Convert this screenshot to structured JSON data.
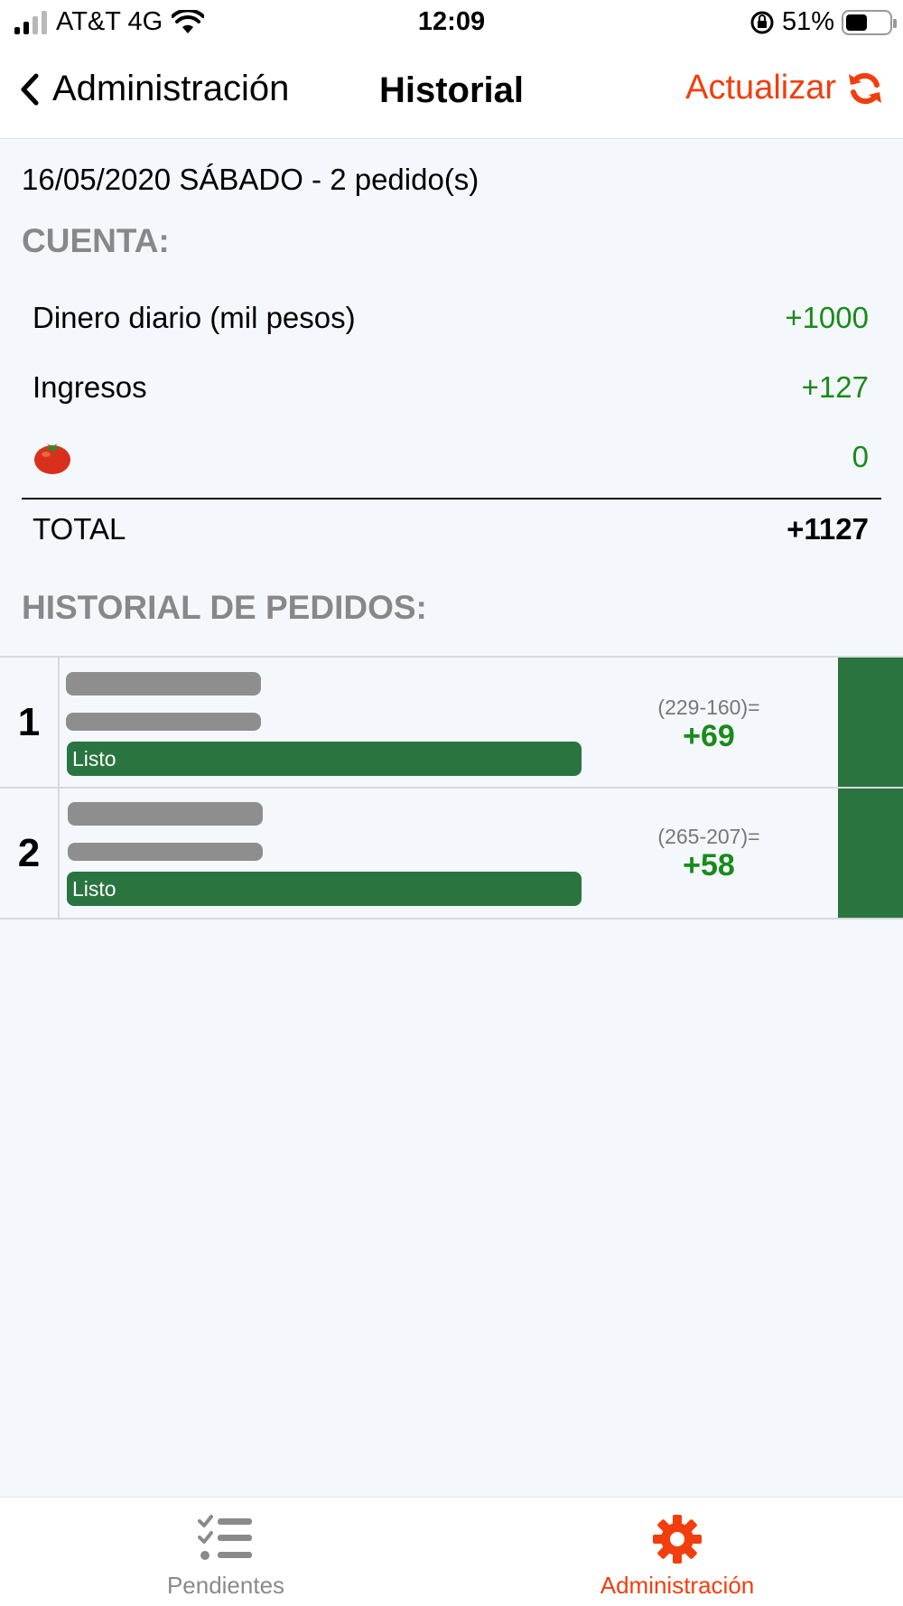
{
  "status_bar": {
    "carrier": "AT&T 4G",
    "time": "12:09",
    "battery": "51%",
    "battery_level": 0.51
  },
  "nav": {
    "back_label": "Administración",
    "title": "Historial",
    "refresh_label": "Actualizar",
    "accent_color": "#f23e0e"
  },
  "summary": {
    "date_line": "16/05/2020 SÁBADO - 2 pedido(s)",
    "account_title": "CUENTA:",
    "rows": [
      {
        "label": "Dinero diario (mil pesos)",
        "value": "+1000"
      },
      {
        "label": "Ingresos",
        "value": "+127"
      },
      {
        "icon": "tomato-icon",
        "value": "0"
      }
    ],
    "total_label": "TOTAL",
    "total_value": "+1127"
  },
  "orders": {
    "title": "HISTORIAL DE PEDIDOS:",
    "items": [
      {
        "number": "1",
        "status": "Listo",
        "calc": "(229-160)=",
        "profit": "+69"
      },
      {
        "number": "2",
        "status": "Listo",
        "calc": "(265-207)=",
        "profit": "+58"
      }
    ]
  },
  "tabs": [
    {
      "label": "Pendientes",
      "icon": "checklist-icon",
      "active": false
    },
    {
      "label": "Administración",
      "icon": "gear-icon",
      "active": true
    }
  ]
}
